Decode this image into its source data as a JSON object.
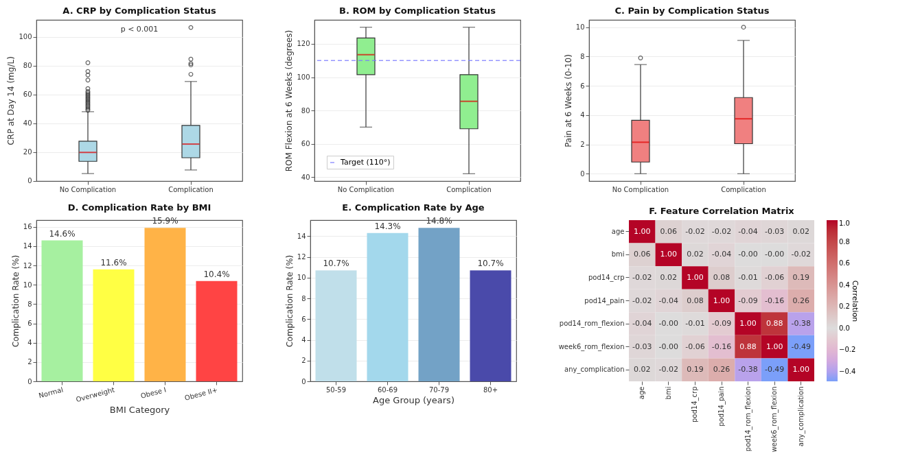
{
  "chart_data": [
    {
      "type": "box",
      "title": "A. CRP by Complication Status",
      "ylabel": "CRP at Day 14 (mg/L)",
      "categories": [
        "No Complication",
        "Complication"
      ],
      "series": [
        {
          "color": "#add8e6",
          "boxes": [
            {
              "low": 5,
              "q1": 13.5,
              "median": 19.7,
              "q3": 27.5,
              "high": 48,
              "outliers": [
                49,
                50,
                51,
                52,
                53,
                54,
                55,
                56,
                57,
                58,
                59,
                60,
                61,
                62,
                64,
                70,
                73.5,
                76,
                82
              ]
            },
            {
              "low": 7.5,
              "q1": 16,
              "median": 25.5,
              "q3": 38.5,
              "high": 69,
              "outliers": [
                74,
                80.5,
                81.5,
                84.5,
                106.5
              ]
            }
          ]
        }
      ],
      "ylim": [
        -0.2,
        111.8
      ],
      "yticks": [
        0,
        20,
        40,
        60,
        80,
        100
      ],
      "grid": "y",
      "annotations": [
        "p < 0.001"
      ]
    },
    {
      "type": "box",
      "title": "B. ROM by Complication Status",
      "ylabel": "ROM Flexion at 6 Weeks (degrees)",
      "categories": [
        "No Complication",
        "Complication"
      ],
      "series": [
        {
          "color": "#90ee90",
          "boxes": [
            {
              "low": 70,
              "q1": 101.5,
              "median": 113.5,
              "q3": 123.5,
              "high": 130
            },
            {
              "low": 42,
              "q1": 69,
              "median": 85.5,
              "q3": 101.5,
              "high": 130
            }
          ]
        }
      ],
      "ylim": [
        37.6,
        134.4
      ],
      "yticks": [
        40,
        60,
        80,
        100,
        120
      ],
      "grid": "y",
      "ref_lines": [
        {
          "axis": "y",
          "value": 110,
          "label": "Target (110°)",
          "color": "#7b7bff",
          "line_style": "dashed"
        }
      ],
      "legend": "bottom left"
    },
    {
      "type": "box",
      "title": "C. Pain by Complication Status",
      "ylabel": "Pain at 6 Weeks (0-10)",
      "categories": [
        "No Complication",
        "Complication"
      ],
      "series": [
        {
          "color": "#f08080",
          "boxes": [
            {
              "low": 0,
              "q1": 0.8,
              "median": 2.15,
              "q3": 3.65,
              "high": 7.45,
              "outliers": [
                7.9
              ]
            },
            {
              "low": 0,
              "q1": 2.05,
              "median": 3.75,
              "q3": 5.2,
              "high": 9.1,
              "outliers": [
                10
              ]
            }
          ]
        }
      ],
      "ylim": [
        -0.5,
        10.5
      ],
      "yticks": [
        0,
        2,
        4,
        6,
        8,
        10
      ],
      "grid": "y"
    },
    {
      "type": "bar",
      "title": "D. Complication Rate by BMI",
      "xlabel": "BMI Category",
      "ylabel": "Complication Rate (%)",
      "categories": [
        "Normal",
        "Overweight",
        "Obese I",
        "Obese II+"
      ],
      "values": [
        14.6,
        11.6,
        15.9,
        10.4
      ],
      "colors": [
        "#a6f0a0",
        "#ffff44",
        "#ffb347",
        "#ff4444"
      ],
      "value_labels": [
        "14.6%",
        "11.6%",
        "15.9%",
        "10.4%"
      ],
      "ylim": [
        0,
        16.7
      ],
      "yticks": [
        0,
        2,
        4,
        6,
        8,
        10,
        12,
        14,
        16
      ],
      "grid": "y"
    },
    {
      "type": "bar",
      "title": "E. Complication Rate by Age",
      "xlabel": "Age Group (years)",
      "ylabel": "Complication Rate (%)",
      "categories": [
        "50-59",
        "60-69",
        "70-79",
        "80+"
      ],
      "values": [
        10.7,
        14.3,
        14.8,
        10.7
      ],
      "colors": [
        "#c0dfea",
        "#a3d8ec",
        "#73a2c6",
        "#4a4aaa"
      ],
      "value_labels": [
        "10.7%",
        "14.3%",
        "14.8%",
        "10.7%"
      ],
      "ylim": [
        0,
        15.54
      ],
      "yticks": [
        0,
        2,
        4,
        6,
        8,
        10,
        12,
        14
      ],
      "grid": "y"
    },
    {
      "type": "heatmap",
      "title": "F. Feature Correlation Matrix",
      "clabel": "Correlation",
      "categories": [
        "age",
        "bmi",
        "pod14_crp",
        "pod14_pain",
        "pod14_rom_flexion",
        "week6_rom_flexion",
        "any_complication"
      ],
      "y_categories": [
        "age",
        "bmi",
        "pod14_crp",
        "pod14_pain",
        "pod14_rom_flexion",
        "week6_rom_flexion",
        "any_complication"
      ],
      "cells": [
        [
          1.0,
          0.06,
          -0.02,
          -0.02,
          -0.04,
          -0.03,
          0.02
        ],
        [
          0.06,
          1.0,
          0.02,
          -0.04,
          0,
          0,
          -0.02
        ],
        [
          -0.02,
          0.02,
          1.0,
          0.08,
          -0.01,
          -0.06,
          0.19
        ],
        [
          -0.02,
          -0.04,
          0.08,
          1.0,
          -0.09,
          -0.16,
          0.26
        ],
        [
          -0.04,
          0,
          -0.01,
          -0.09,
          1.0,
          0.88,
          -0.38
        ],
        [
          -0.03,
          0,
          -0.06,
          -0.16,
          0.88,
          1.0,
          -0.49
        ],
        [
          0.02,
          -0.02,
          0.19,
          0.26,
          -0.38,
          -0.49,
          1.0
        ]
      ],
      "cell_labels": [
        [
          "1.00",
          "0.06",
          "-0.02",
          "-0.02",
          "-0.04",
          "-0.03",
          "0.02"
        ],
        [
          "0.06",
          "1.00",
          "0.02",
          "-0.04",
          "-0.00",
          "-0.00",
          "-0.02"
        ],
        [
          "-0.02",
          "0.02",
          "1.00",
          "0.08",
          "-0.01",
          "-0.06",
          "0.19"
        ],
        [
          "-0.02",
          "-0.04",
          "0.08",
          "1.00",
          "-0.09",
          "-0.16",
          "0.26"
        ],
        [
          "-0.04",
          "-0.00",
          "-0.01",
          "-0.09",
          "1.00",
          "0.88",
          "-0.38"
        ],
        [
          "-0.03",
          "-0.00",
          "-0.06",
          "-0.16",
          "0.88",
          "1.00",
          "-0.49"
        ],
        [
          "0.02",
          "-0.02",
          "0.19",
          "0.26",
          "-0.38",
          "-0.49",
          "1.00"
        ]
      ],
      "clim": [
        -0.49,
        1.0
      ],
      "cticks": [
        {
          "value": -0.4,
          "label": "−0.4"
        },
        {
          "value": -0.2,
          "label": "−0.2"
        },
        {
          "value": 0,
          "label": "0.0"
        },
        {
          "value": 0.2,
          "label": "0.2"
        },
        {
          "value": 0.4,
          "label": "0.4"
        },
        {
          "value": 0.6,
          "label": "0.6"
        },
        {
          "value": 0.8,
          "label": "0.8"
        },
        {
          "value": 1.0,
          "label": "1.0"
        }
      ]
    }
  ]
}
